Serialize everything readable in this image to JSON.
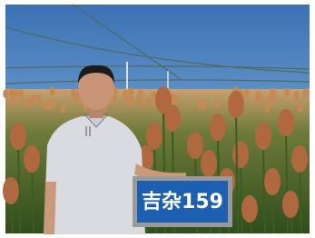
{
  "sign": {
    "text": "吉杂159"
  }
}
